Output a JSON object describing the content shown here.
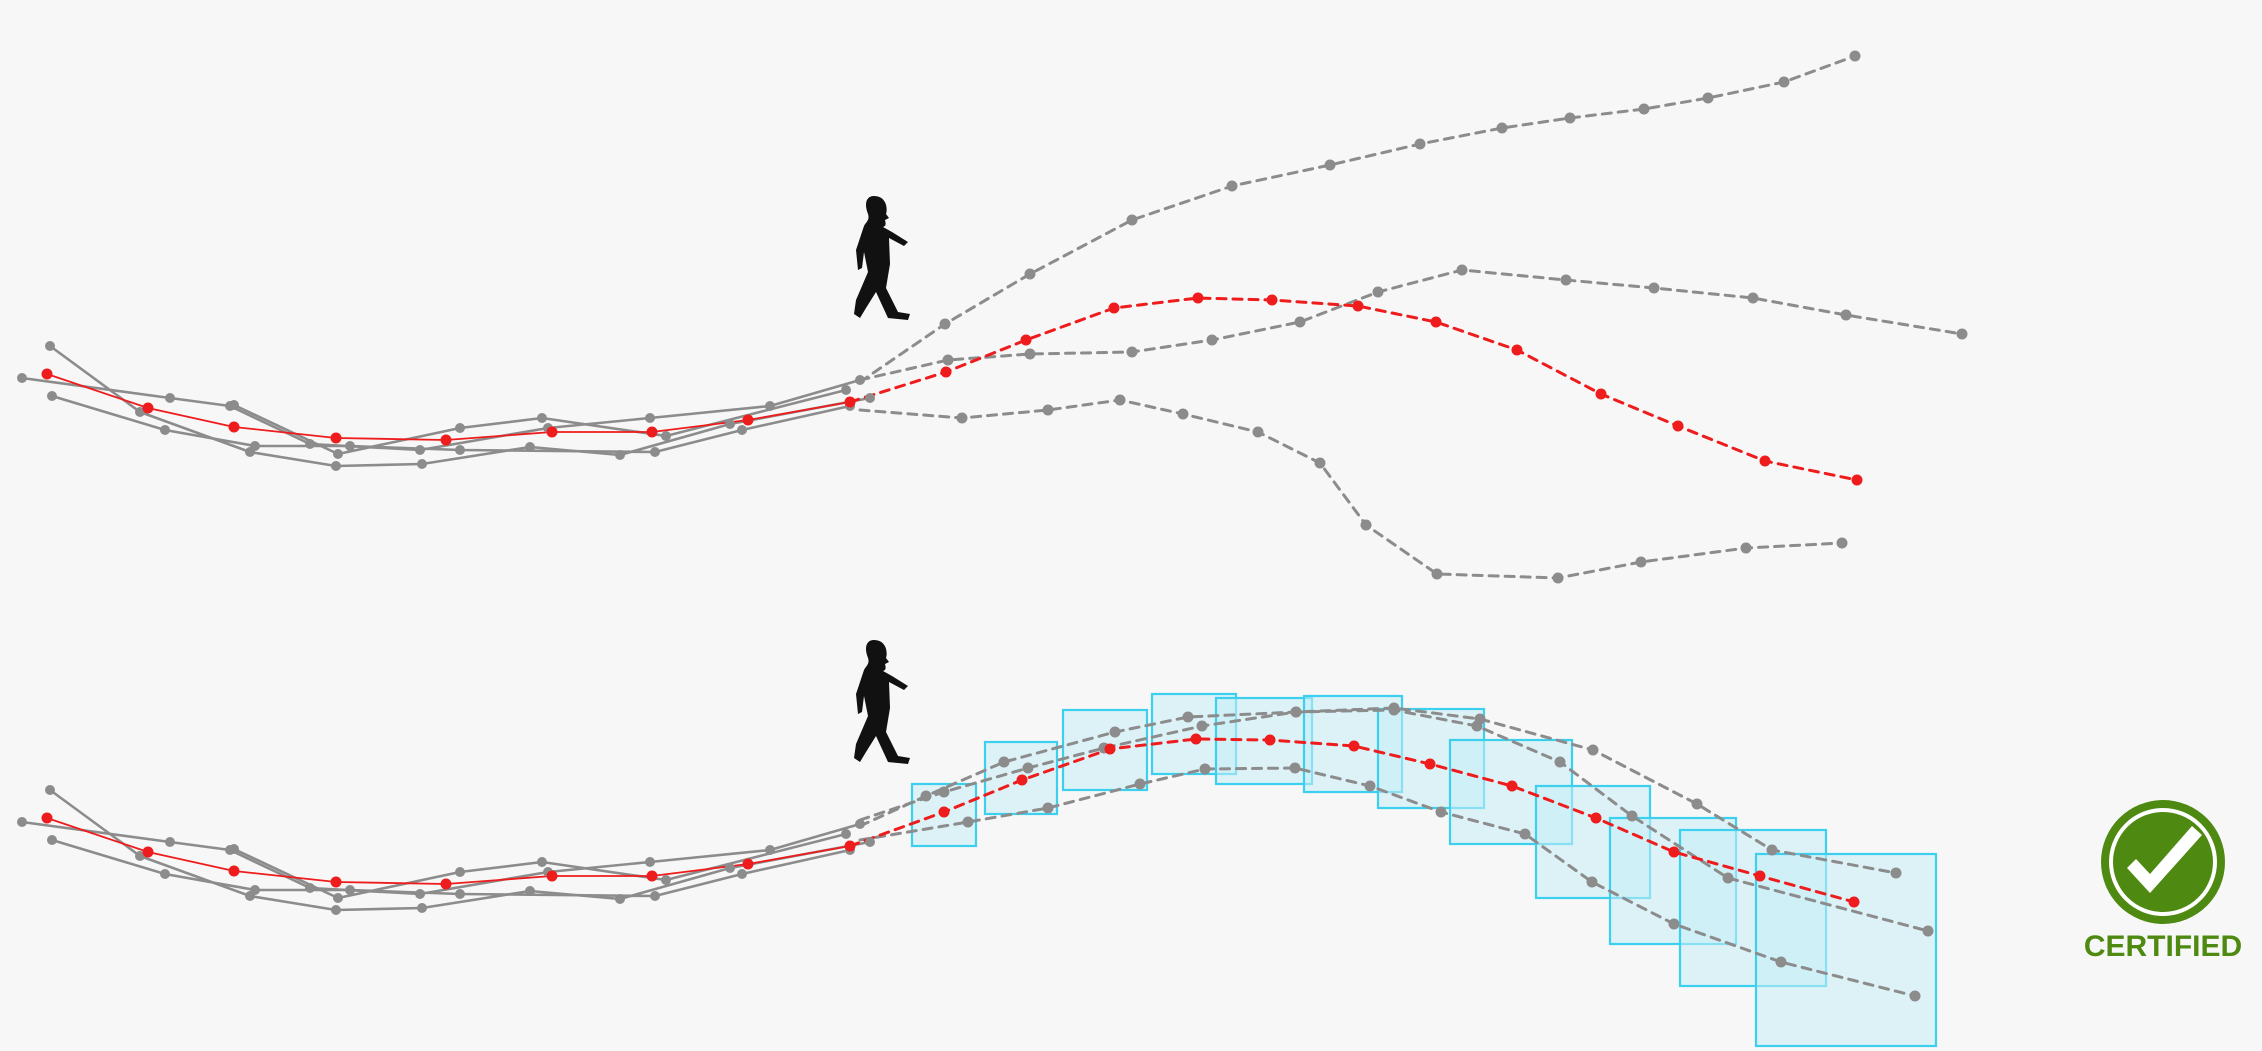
{
  "badge": {
    "label": "CERTIFIED",
    "icon": "certified-check-icon",
    "color": "#4e8a12"
  },
  "colors": {
    "background": "#f7f7f7",
    "neighbor_trajectory": "#8c8c8c",
    "ego_trajectory": "#ee1c1c",
    "certified_box_stroke": "#3dd0ee",
    "certified_box_fill": "#c6eef7",
    "pedestrian": "#111111"
  },
  "panels": [
    {
      "name": "predicted-trajectories",
      "observed_style": "solid",
      "prediction_style": "dashed",
      "has_certified_boxes": false
    },
    {
      "name": "certified-trajectories",
      "observed_style": "solid",
      "prediction_style": "dashed",
      "has_certified_boxes": true
    }
  ]
}
